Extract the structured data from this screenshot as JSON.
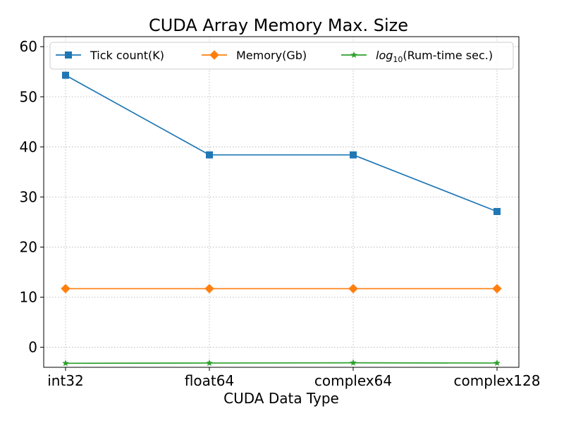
{
  "chart_data": {
    "type": "line",
    "title": "CUDA Array Memory Max. Size",
    "xlabel": "CUDA Data Type",
    "ylabel": "",
    "categories": [
      "int32",
      "float64",
      "complex64",
      "complex128"
    ],
    "ylim": [
      -4,
      62
    ],
    "yticks": [
      0,
      10,
      20,
      30,
      40,
      50,
      60
    ],
    "grid": true,
    "legend_position": "top",
    "series": [
      {
        "name": "Tick count(K)",
        "values": [
          54.3,
          38.4,
          38.4,
          27.1
        ],
        "color": "#1f77b4",
        "marker": "square"
      },
      {
        "name": "Memory(Gb)",
        "values": [
          11.7,
          11.7,
          11.7,
          11.7
        ],
        "color": "#ff7f0e",
        "marker": "diamond"
      },
      {
        "name": "log10(Rum-time sec.)",
        "values": [
          -3.2,
          -3.15,
          -3.1,
          -3.15
        ],
        "color": "#2ca02c",
        "marker": "star"
      }
    ]
  }
}
